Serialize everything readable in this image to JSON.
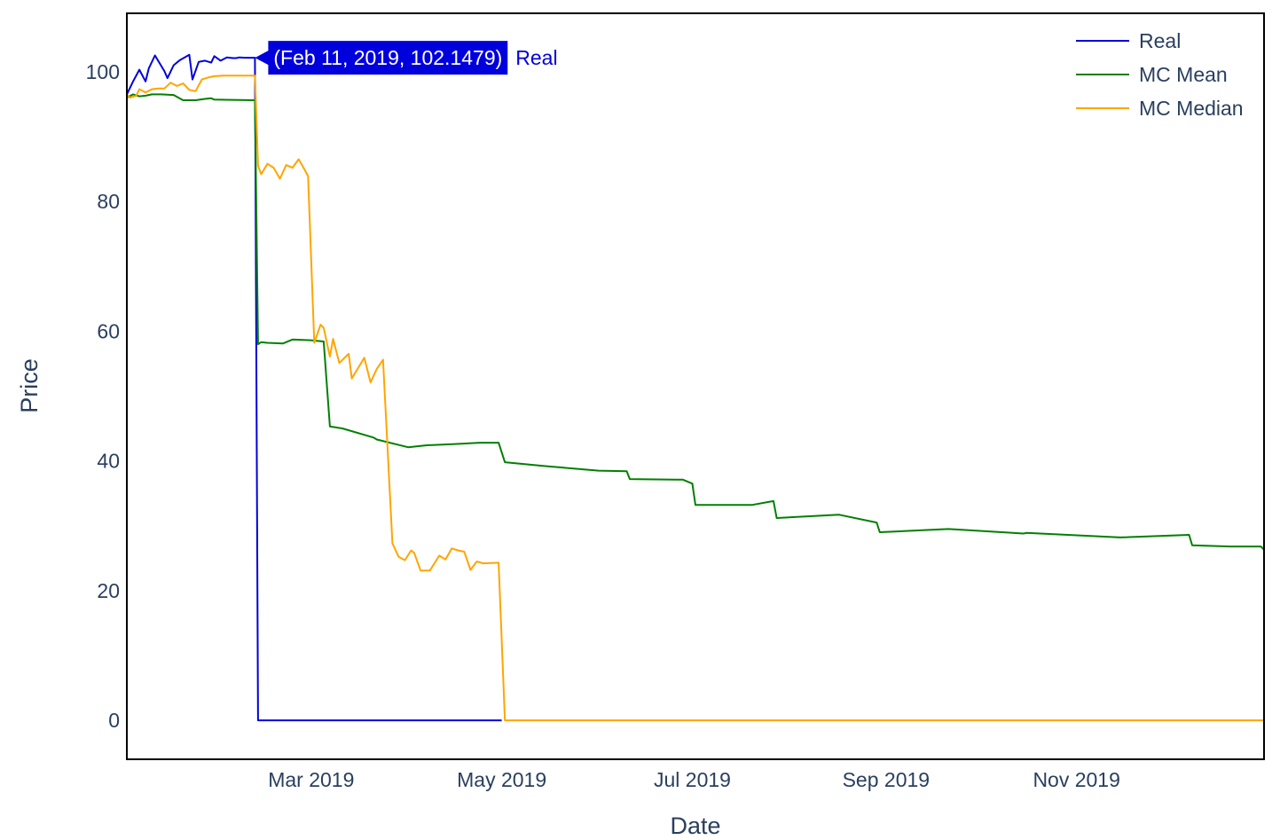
{
  "chart_data": {
    "type": "line",
    "xlabel": "Date",
    "ylabel": "Price",
    "x_range": [
      "2019-01-01",
      "2019-12-31"
    ],
    "ylim": [
      -6,
      109
    ],
    "x_ticks": [
      {
        "date": "2019-03-01",
        "label": "Mar 2019"
      },
      {
        "date": "2019-05-01",
        "label": "May 2019"
      },
      {
        "date": "2019-07-01",
        "label": "Jul 2019"
      },
      {
        "date": "2019-09-01",
        "label": "Sep 2019"
      },
      {
        "date": "2019-11-01",
        "label": "Nov 2019"
      }
    ],
    "y_ticks": [
      0,
      20,
      40,
      60,
      80,
      100
    ],
    "grid": false,
    "legend_position": "top-right",
    "series": [
      {
        "name": "Real",
        "color": "#0000dd",
        "x": [
          "2019-01-01",
          "2019-01-03",
          "2019-01-05",
          "2019-01-07",
          "2019-01-08",
          "2019-01-10",
          "2019-01-13",
          "2019-01-14",
          "2019-01-16",
          "2019-01-18",
          "2019-01-21",
          "2019-01-22",
          "2019-01-24",
          "2019-01-26",
          "2019-01-28",
          "2019-01-29",
          "2019-01-31",
          "2019-02-02",
          "2019-02-04",
          "2019-02-05",
          "2019-02-06",
          "2019-02-08",
          "2019-02-11",
          "2019-02-12",
          "2019-05-01"
        ],
        "y": [
          96.5,
          98.5,
          100.3,
          98.5,
          100.5,
          102.5,
          100.1,
          99,
          101,
          101.8,
          102.6,
          98.8,
          101.5,
          101.7,
          101.4,
          102.4,
          101.7,
          102.2,
          102.1,
          102.1,
          102.2,
          102.15,
          102.1479,
          0,
          0
        ]
      },
      {
        "name": "MC Mean",
        "color": "#008000",
        "x": [
          "2019-01-01",
          "2019-01-03",
          "2019-01-05",
          "2019-01-07",
          "2019-01-09",
          "2019-01-12",
          "2019-01-16",
          "2019-01-19",
          "2019-01-21",
          "2019-01-23",
          "2019-01-26",
          "2019-01-28",
          "2019-01-29",
          "2019-02-11",
          "2019-02-12",
          "2019-02-13",
          "2019-02-15",
          "2019-02-20",
          "2019-02-23",
          "2019-03-01",
          "2019-03-05",
          "2019-03-07",
          "2019-03-11",
          "2019-03-21",
          "2019-03-22",
          "2019-04-01",
          "2019-04-07",
          "2019-04-12",
          "2019-04-24",
          "2019-04-30",
          "2019-05-02",
          "2019-05-15",
          "2019-06-01",
          "2019-06-10",
          "2019-06-11",
          "2019-06-28",
          "2019-07-01",
          "2019-07-02",
          "2019-07-20",
          "2019-07-27",
          "2019-07-28",
          "2019-08-17",
          "2019-08-29",
          "2019-08-30",
          "2019-09-21",
          "2019-10-15",
          "2019-10-16",
          "2019-11-15",
          "2019-12-07",
          "2019-12-08",
          "2019-12-20",
          "2019-12-30",
          "2019-12-31"
        ],
        "y": [
          96,
          96.5,
          96.2,
          96.3,
          96.5,
          96.5,
          96.4,
          95.6,
          95.6,
          95.6,
          95.8,
          95.9,
          95.7,
          95.6,
          58,
          58.3,
          58.2,
          58.1,
          58.7,
          58.6,
          58.4,
          45.3,
          45,
          43.6,
          43.3,
          42.1,
          42.4,
          42.5,
          42.8,
          42.8,
          39.8,
          39.2,
          38.5,
          38.4,
          37.2,
          37.1,
          36.5,
          33.2,
          33.2,
          33.8,
          31.2,
          31.7,
          30.5,
          29,
          29.5,
          28.8,
          28.9,
          28.2,
          28.6,
          27,
          26.8,
          26.8,
          26.3
        ]
      },
      {
        "name": "MC Median",
        "color": "#ffa500",
        "x": [
          "2019-01-01",
          "2019-01-02",
          "2019-01-04",
          "2019-01-05",
          "2019-01-07",
          "2019-01-09",
          "2019-01-11",
          "2019-01-13",
          "2019-01-15",
          "2019-01-17",
          "2019-01-19",
          "2019-01-21",
          "2019-01-23",
          "2019-01-25",
          "2019-01-27",
          "2019-01-29",
          "2019-02-01",
          "2019-02-11",
          "2019-02-12",
          "2019-02-13",
          "2019-02-15",
          "2019-02-17",
          "2019-02-19",
          "2019-02-21",
          "2019-02-23",
          "2019-02-25",
          "2019-02-27",
          "2019-02-28",
          "2019-03-02",
          "2019-03-04",
          "2019-03-05",
          "2019-03-07",
          "2019-03-08",
          "2019-03-10",
          "2019-03-13",
          "2019-03-14",
          "2019-03-16",
          "2019-03-18",
          "2019-03-20",
          "2019-03-22",
          "2019-03-24",
          "2019-03-27",
          "2019-03-29",
          "2019-03-31",
          "2019-04-02",
          "2019-04-03",
          "2019-04-05",
          "2019-04-08",
          "2019-04-11",
          "2019-04-13",
          "2019-04-15",
          "2019-04-17",
          "2019-04-19",
          "2019-04-21",
          "2019-04-23",
          "2019-04-25",
          "2019-04-30",
          "2019-05-02",
          "2019-12-31"
        ],
        "y": [
          96.5,
          96,
          96.3,
          97.3,
          96.8,
          97.3,
          97.4,
          97.4,
          98.3,
          97.8,
          98.2,
          97.2,
          97,
          98.8,
          99.1,
          99.3,
          99.4,
          99.4,
          85.5,
          84.2,
          85.8,
          85.2,
          83.5,
          85.6,
          85.2,
          86.5,
          84.8,
          83.9,
          58.2,
          61,
          60.5,
          56.1,
          58.8,
          55.1,
          56.5,
          52.7,
          54.3,
          55.9,
          52.1,
          54.2,
          55.6,
          27.3,
          25.2,
          24.7,
          26.2,
          25.8,
          23.1,
          23.1,
          25.4,
          24.8,
          26.5,
          26.2,
          26,
          23.2,
          24.5,
          24.2,
          24.3,
          0,
          0
        ]
      }
    ],
    "hover": {
      "label": "(Feb 11, 2019, 102.1479)",
      "series_name": "Real",
      "x": "2019-02-11",
      "y": 102.1479
    }
  }
}
